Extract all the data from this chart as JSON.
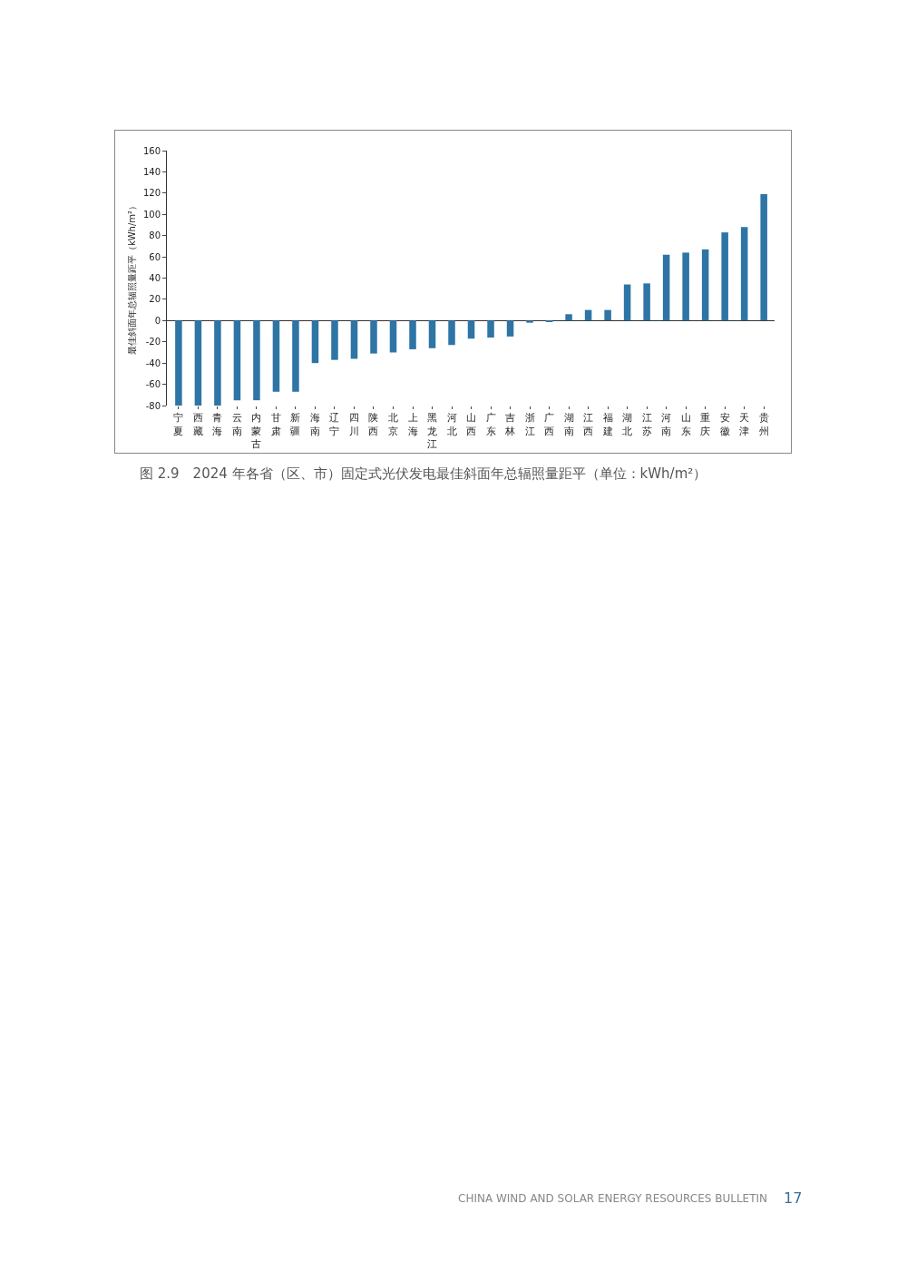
{
  "chart_data": {
    "type": "bar",
    "title": "图 2.9　2024 年各省（区、市）固定式光伏发电最佳斜面年总辐照量距平（单位：kWh/m²）",
    "ylabel": "最佳斜面年总辐照量距平（kWh/m²）",
    "categories": [
      "宁夏",
      "西藏",
      "青海",
      "云南",
      "内蒙古",
      "甘肃",
      "新疆",
      "海南",
      "辽宁",
      "四川",
      "陕西",
      "北京",
      "上海",
      "黑龙江",
      "河北",
      "山西",
      "广东",
      "吉林",
      "浙江",
      "广西",
      "湖南",
      "江西",
      "福建",
      "湖北",
      "江苏",
      "河南",
      "山东",
      "重庆",
      "安徽",
      "天津",
      "贵州"
    ],
    "values": [
      -80,
      -80,
      -80,
      -75,
      -75,
      -67,
      -67,
      -40,
      -37,
      -36,
      -31,
      -30,
      -27,
      -26,
      -23,
      -17,
      -16,
      -15,
      -2,
      -1,
      6,
      10,
      10,
      34,
      35,
      62,
      64,
      67,
      83,
      88,
      119
    ],
    "color": "#2e75a6",
    "ylim": [
      -80,
      160
    ],
    "yticks": [
      -80,
      -60,
      -40,
      -20,
      0,
      20,
      40,
      60,
      80,
      100,
      120,
      140,
      160
    ],
    "annotations": [
      "CHINA WIND AND SOLAR ENERGY RESOURCES BULLETIN",
      "17"
    ]
  }
}
